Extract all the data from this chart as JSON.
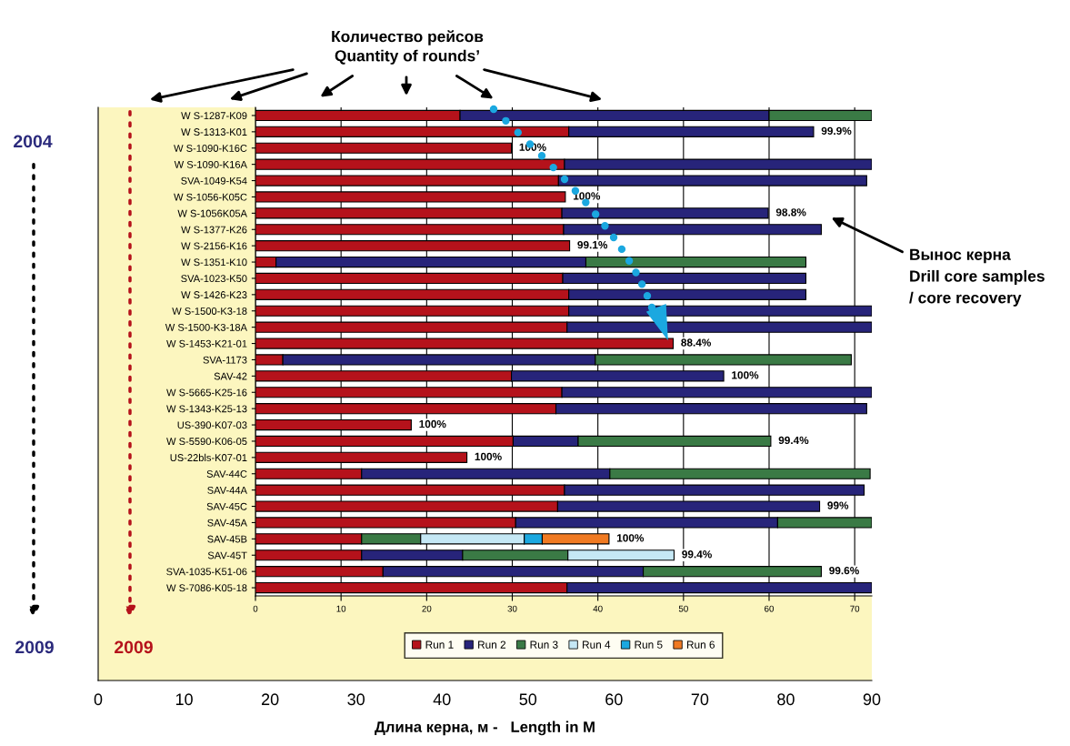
{
  "chart_data": {
    "type": "bar",
    "orientation": "horizontal",
    "stacked": true,
    "title": "Количество рейсов\nQuantity of rounds’",
    "x2label": "Длина керна, м -   Length in M",
    "categories": [
      "W S-1287-K09",
      "W S-1313-K01",
      "W S-1090-K16C",
      "W S-1090-K16A",
      "SVA-1049-K54",
      "W S-1056-K05C",
      "W S-1056K05A",
      "W S-1377-K26",
      "W S-2156-K16",
      "W S-1351-K10",
      "SVA-1023-K50",
      "W S-1426-K23",
      "W S-1500-K3-18",
      "W S-1500-K3-18A",
      "W S-1453-K21-01",
      "SVA-1173",
      "SAV-42",
      "W S-5665-K25-16",
      "W S-1343-K25-13",
      "US-390-K07-03",
      "W S-5590-K06-05",
      "US-22bls-K07-01",
      "SAV-44C",
      "SAV-44A",
      "SAV-45C",
      "SAV-45A",
      "SAV-45B",
      "SAV-45T",
      "SVA-1035-K51-06",
      "W S-7086-K05-18"
    ],
    "series": [
      {
        "name": "Run 1",
        "color": "#b5121b",
        "values": [
          23.9,
          36.6,
          29.9,
          36.1,
          35.4,
          36.2,
          35.8,
          36,
          36.7,
          2.4,
          35.9,
          36.6,
          36.6,
          36.4,
          48.8,
          3.2,
          29.9,
          35.8,
          35.1,
          18.2,
          30.1,
          24.7,
          12.4,
          36.1,
          35.3,
          30.4,
          12.4,
          12.4,
          14.9,
          36.4
        ]
      },
      {
        "name": "Run 2",
        "color": "#27247a",
        "values": [
          36.1,
          28.6,
          null,
          35.9,
          36,
          null,
          24.1,
          30.1,
          null,
          36.2,
          28.4,
          27.7,
          35.4,
          35.6,
          null,
          36.5,
          24.8,
          36.2,
          36.3,
          null,
          7.6,
          null,
          29,
          35,
          30.6,
          30.6,
          null,
          11.8,
          30.4,
          35.6
        ]
      },
      {
        "name": "Run 3",
        "color": "#3a7a45",
        "values": [
          12,
          null,
          null,
          null,
          null,
          null,
          null,
          null,
          null,
          25.7,
          null,
          null,
          null,
          null,
          null,
          29.9,
          null,
          null,
          null,
          null,
          22.5,
          null,
          30.4,
          null,
          null,
          11,
          6.9,
          12.3,
          20.8,
          null
        ]
      },
      {
        "name": "Run 4",
        "color": "#c5e8f5",
        "values": [
          null,
          null,
          null,
          null,
          null,
          null,
          null,
          null,
          null,
          null,
          null,
          null,
          null,
          null,
          null,
          null,
          null,
          null,
          null,
          null,
          null,
          null,
          null,
          null,
          null,
          null,
          12.1,
          12.4,
          null,
          null
        ]
      },
      {
        "name": "Run 5",
        "color": "#1ba8e0",
        "values": [
          null,
          null,
          null,
          null,
          null,
          null,
          null,
          null,
          null,
          null,
          null,
          null,
          null,
          null,
          null,
          null,
          null,
          null,
          null,
          null,
          null,
          null,
          null,
          null,
          null,
          null,
          2.1,
          null,
          null,
          null
        ]
      },
      {
        "name": "Run 6",
        "color": "#f07a22",
        "values": [
          null,
          null,
          null,
          null,
          null,
          null,
          null,
          null,
          null,
          null,
          null,
          null,
          null,
          null,
          null,
          null,
          null,
          null,
          null,
          null,
          null,
          null,
          null,
          null,
          null,
          null,
          7.8,
          null,
          null,
          null
        ]
      }
    ],
    "xlim": [
      0,
      72
    ],
    "xticks": [
      0,
      10,
      20,
      30,
      40,
      50,
      60,
      70
    ],
    "x2lim": [
      0,
      90
    ],
    "x2ticks": [
      0,
      10,
      20,
      30,
      40,
      50,
      60,
      70,
      80,
      90
    ],
    "grid": "x",
    "legend": "bottom",
    "annotations": [
      "Вынос керна\nDrill core samples\n/ core recovery",
      "2004",
      "2009",
      "2009",
      {
        "text": "99.9%",
        "x": 65.2,
        "y": "W S-1313-K01"
      },
      {
        "text": "100%",
        "x": 29.9,
        "y": "W S-1090-K16C"
      },
      {
        "text": "100%",
        "x": 36.2,
        "y": "W S-1056-K05C"
      },
      {
        "text": "98.8%",
        "x": 59.9,
        "y": "W S-1056K05A"
      },
      {
        "text": "99.1%",
        "x": 36.7,
        "y": "W S-2156-K16"
      },
      {
        "text": "88.4%",
        "x": 48.8,
        "y": "W S-1453-K21-01"
      },
      {
        "text": "100%",
        "x": 54.7,
        "y": "SAV-42"
      },
      {
        "text": "100%",
        "x": 18.2,
        "y": "US-390-K07-03"
      },
      {
        "text": "99.4%",
        "x": 60.2,
        "y": "W S-5590-K06-05"
      },
      {
        "text": "100%",
        "x": 24.7,
        "y": "US-22bls-K07-01"
      },
      {
        "text": "99%",
        "x": 65.9,
        "y": "SAV-45C"
      },
      {
        "text": "100%",
        "x": 41.3,
        "y": "SAV-45B"
      },
      {
        "text": "99.4%",
        "x": 48.9,
        "y": "SAV-45T"
      },
      {
        "text": "99.6%",
        "x": 66.1,
        "y": "SVA-1035-K51-06"
      }
    ]
  }
}
